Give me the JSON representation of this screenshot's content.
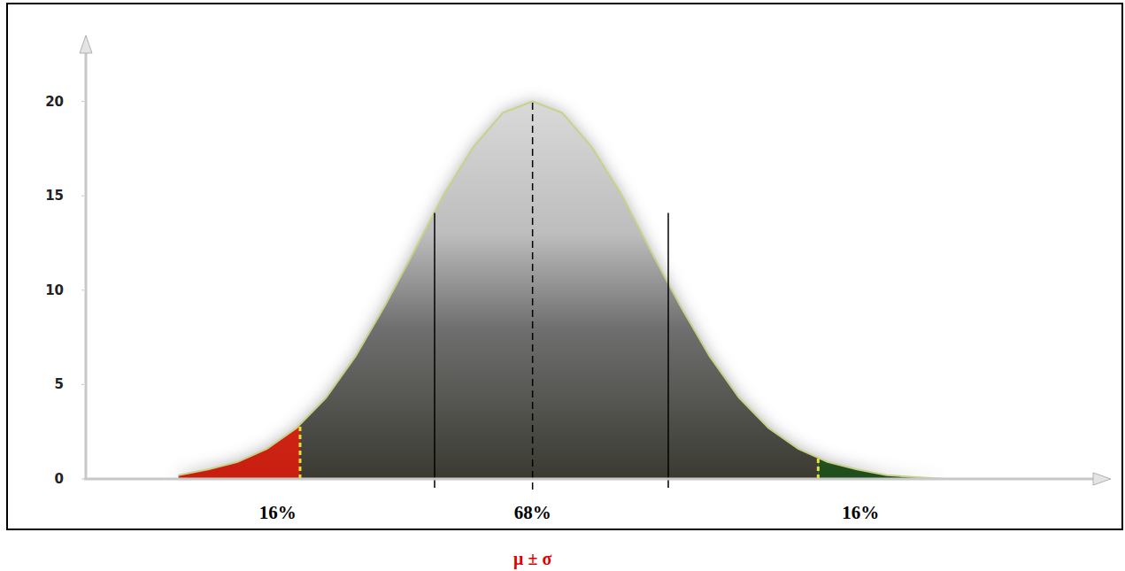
{
  "chart_data": {
    "type": "area",
    "x": [
      -3,
      -2.75,
      -2.5,
      -2.25,
      -2,
      -1.75,
      -1.5,
      -1.25,
      -1,
      -0.75,
      -0.5,
      -0.25,
      0,
      0.25,
      0.5,
      0.75,
      1,
      1.25,
      1.5,
      1.75,
      2,
      2.25,
      2.5,
      2.75,
      3,
      3.25,
      3.5
    ],
    "values": [
      0.2,
      0.5,
      0.9,
      1.6,
      2.7,
      4.3,
      6.5,
      9.2,
      12.1,
      15.1,
      17.6,
      19.4,
      20,
      19.4,
      17.6,
      15.1,
      12.1,
      9.2,
      6.5,
      4.3,
      2.7,
      1.6,
      0.9,
      0.5,
      0.2,
      0.1,
      0
    ],
    "xlim": [
      -3.8,
      4.9
    ],
    "ylim": [
      0,
      23.5
    ],
    "yticks": [
      0,
      5,
      10,
      15,
      20
    ],
    "tick_labels": "y",
    "grid": false,
    "mean": 0,
    "sd_lines": [
      -0.83,
      1.15
    ],
    "sd_line_height": 14.1,
    "tail_lines": [
      -1.97,
      2.42
    ],
    "annotations": [
      {
        "text": "16%",
        "x": -2.16
      },
      {
        "text": "68%",
        "x": 0
      },
      {
        "text": "16%",
        "x": 2.78
      }
    ],
    "caption": "μ ± σ"
  }
}
